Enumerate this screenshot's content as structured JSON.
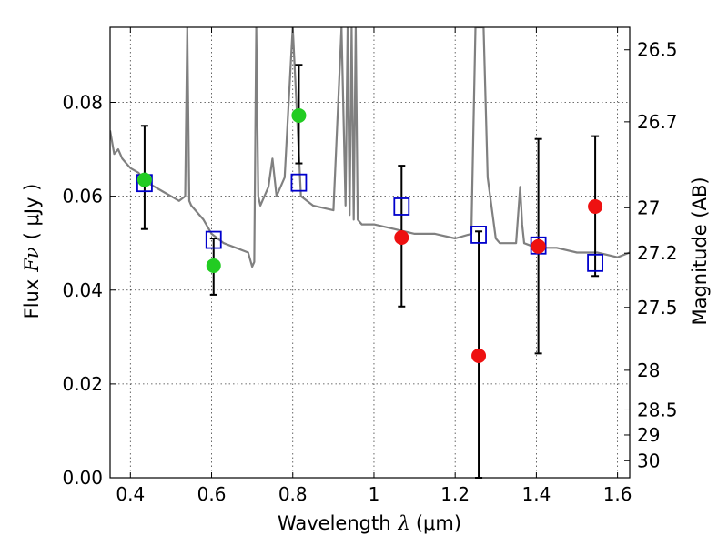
{
  "chart_data": {
    "type": "scatter",
    "xlabel": "Wavelength",
    "xlabel_symbol": "λ",
    "xlabel_unit": "(μm)",
    "ylabel": "Flux",
    "ylabel_symbol": "Fν",
    "ylabel_unit": "( μJy )",
    "y2label": "Magnitude (AB)",
    "xlim": [
      0.35,
      1.63
    ],
    "ylim": [
      0.0,
      0.096
    ],
    "grid": true,
    "x_ticks": [
      0.4,
      0.6,
      0.8,
      1.0,
      1.2,
      1.4,
      1.6
    ],
    "x_tick_labels": [
      "0.4",
      "0.6",
      "0.8",
      "1",
      "1.2",
      "1.4",
      "1.6"
    ],
    "y_ticks": [
      0.0,
      0.02,
      0.04,
      0.06,
      0.08
    ],
    "y_tick_labels": [
      "0.00",
      "0.02",
      "0.04",
      "0.06",
      "0.08"
    ],
    "y2_ticks": [
      "26.5",
      "26.7",
      "27",
      "27.2",
      "27.5",
      "28",
      "28.5",
      "29",
      "30"
    ],
    "series": [
      {
        "marker": "line",
        "color": "#808080",
        "x": [
          0.35,
          0.36,
          0.37,
          0.38,
          0.39,
          0.4,
          0.42,
          0.44,
          0.46,
          0.48,
          0.5,
          0.52,
          0.535,
          0.54,
          0.545,
          0.55,
          0.58,
          0.6,
          0.63,
          0.66,
          0.69,
          0.7,
          0.705,
          0.71,
          0.715,
          0.72,
          0.74,
          0.75,
          0.76,
          0.78,
          0.8,
          0.82,
          0.85,
          0.9,
          0.92,
          0.93,
          0.935,
          0.94,
          0.945,
          0.95,
          0.955,
          0.96,
          0.97,
          1.0,
          1.05,
          1.1,
          1.15,
          1.2,
          1.24,
          1.245,
          1.25,
          1.255,
          1.26,
          1.27,
          1.28,
          1.3,
          1.31,
          1.32,
          1.35,
          1.36,
          1.365,
          1.37,
          1.4,
          1.45,
          1.5,
          1.55,
          1.6,
          1.63
        ],
        "y": [
          0.074,
          0.069,
          0.07,
          0.068,
          0.067,
          0.066,
          0.065,
          0.063,
          0.062,
          0.061,
          0.06,
          0.059,
          0.06,
          0.096,
          0.059,
          0.058,
          0.055,
          0.052,
          0.05,
          0.049,
          0.048,
          0.045,
          0.046,
          0.096,
          0.06,
          0.058,
          0.062,
          0.068,
          0.06,
          0.064,
          0.096,
          0.06,
          0.058,
          0.057,
          0.096,
          0.058,
          0.096,
          0.056,
          0.096,
          0.055,
          0.096,
          0.055,
          0.054,
          0.054,
          0.053,
          0.052,
          0.052,
          0.051,
          0.052,
          0.075,
          0.096,
          0.096,
          0.096,
          0.096,
          0.064,
          0.051,
          0.05,
          0.05,
          0.05,
          0.062,
          0.054,
          0.05,
          0.049,
          0.049,
          0.048,
          0.048,
          0.047,
          0.048
        ]
      },
      {
        "marker": "open-square",
        "color": "#0000cc",
        "x": [
          0.435,
          0.605,
          0.815,
          1.068,
          1.258,
          1.405,
          1.545
        ],
        "y": [
          0.0628,
          0.0507,
          0.0629,
          0.0578,
          0.0518,
          0.0495,
          0.0458
        ]
      },
      {
        "marker": "filled-circle",
        "color": "#22cc22",
        "x": [
          0.435,
          0.605,
          0.815
        ],
        "y": [
          0.0635,
          0.0452,
          0.0772
        ],
        "yerr_low": [
          0.053,
          0.039,
          0.067
        ],
        "yerr_high": [
          0.075,
          0.051,
          0.088
        ]
      },
      {
        "marker": "filled-circle",
        "color": "#ee1111",
        "x": [
          1.068,
          1.258,
          1.405,
          1.545
        ],
        "y": [
          0.0512,
          0.026,
          0.0493,
          0.0578
        ],
        "yerr_low": [
          0.0365,
          0.0,
          0.0265,
          0.043
        ],
        "yerr_high": [
          0.0665,
          0.0525,
          0.0722,
          0.0728
        ]
      }
    ]
  }
}
